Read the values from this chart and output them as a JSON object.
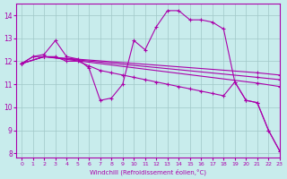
{
  "xlabel": "Windchill (Refroidissement éolien,°C)",
  "bg_color": "#c8ecec",
  "grid_color": "#a0c8c8",
  "line_color": "#aa00aa",
  "xlim": [
    -0.5,
    23
  ],
  "ylim": [
    7.8,
    14.5
  ],
  "yticks": [
    8,
    9,
    10,
    11,
    12,
    13,
    14
  ],
  "xticks": [
    0,
    1,
    2,
    3,
    4,
    5,
    6,
    7,
    8,
    9,
    10,
    11,
    12,
    13,
    14,
    15,
    16,
    17,
    18,
    19,
    20,
    21,
    22,
    23
  ],
  "series": [
    {
      "x": [
        0,
        1,
        2,
        3,
        4,
        5,
        6,
        7,
        8,
        9,
        10,
        11,
        12,
        13,
        14,
        15,
        16,
        17,
        18,
        19,
        20,
        21,
        22,
        23
      ],
      "y": [
        11.9,
        12.2,
        12.3,
        12.9,
        12.2,
        12.1,
        11.7,
        10.3,
        10.4,
        11.0,
        12.9,
        12.5,
        13.5,
        14.2,
        14.2,
        13.8,
        13.8,
        13.7,
        13.4,
        11.1,
        10.3,
        10.2,
        9.0,
        8.1
      ]
    },
    {
      "x": [
        0,
        1,
        2,
        3,
        4,
        5,
        6,
        7,
        8,
        9,
        10,
        11,
        12,
        13,
        14,
        15,
        16,
        17,
        18,
        19,
        20,
        21,
        22,
        23
      ],
      "y": [
        11.9,
        12.2,
        12.2,
        12.2,
        12.0,
        12.0,
        11.8,
        11.6,
        11.5,
        11.4,
        11.3,
        11.2,
        11.1,
        11.0,
        10.9,
        10.8,
        10.7,
        10.6,
        10.5,
        11.1,
        10.3,
        10.2,
        9.0,
        8.1
      ]
    },
    {
      "x": [
        0,
        2,
        21,
        23
      ],
      "y": [
        11.9,
        12.2,
        11.3,
        11.2
      ]
    },
    {
      "x": [
        0,
        2,
        21,
        23
      ],
      "y": [
        11.9,
        12.2,
        11.5,
        11.4
      ]
    },
    {
      "x": [
        0,
        2,
        21,
        23
      ],
      "y": [
        11.9,
        12.2,
        11.05,
        10.9
      ]
    }
  ]
}
